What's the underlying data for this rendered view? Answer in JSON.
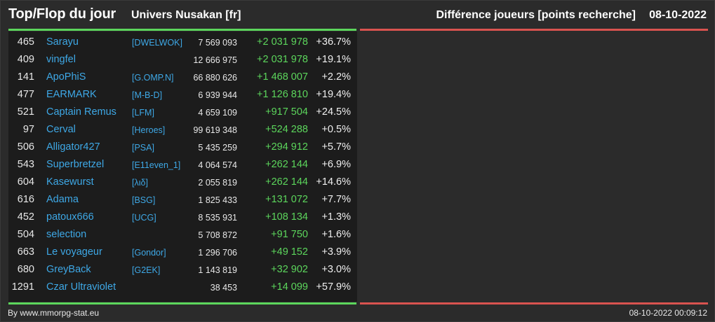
{
  "header": {
    "title": "Top/Flop du jour",
    "universe": "Univers Nusakan [fr]",
    "subtitle": "Différence joueurs [points recherche]",
    "date": "08-10-2022"
  },
  "colors": {
    "accent_green": "#5cd65c",
    "accent_red": "#d9534f",
    "link_blue": "#3ea8e6",
    "background": "#2b2b2b"
  },
  "rows": [
    {
      "rank": "465",
      "name": "Sarayu",
      "alliance": "[DWELWOK]",
      "points": "7 569 093",
      "diff": "+2 031 978",
      "pct": "+36.7%"
    },
    {
      "rank": "409",
      "name": "vingfel",
      "alliance": "",
      "points": "12 666 975",
      "diff": "+2 031 978",
      "pct": "+19.1%"
    },
    {
      "rank": "141",
      "name": "ApoPhiS",
      "alliance": "[G.OMP.N]",
      "points": "66 880 626",
      "diff": "+1 468 007",
      "pct": "+2.2%"
    },
    {
      "rank": "477",
      "name": "EARMARK",
      "alliance": "[M-B-D]",
      "points": "6 939 944",
      "diff": "+1 126 810",
      "pct": "+19.4%"
    },
    {
      "rank": "521",
      "name": "Captain Remus",
      "alliance": "[LFM]",
      "points": "4 659 109",
      "diff": "+917 504",
      "pct": "+24.5%"
    },
    {
      "rank": "97",
      "name": "Cerval",
      "alliance": "[Heroes]",
      "points": "99 619 348",
      "diff": "+524 288",
      "pct": "+0.5%"
    },
    {
      "rank": "506",
      "name": "Alligator427",
      "alliance": "[PSA]",
      "points": "5 435 259",
      "diff": "+294 912",
      "pct": "+5.7%"
    },
    {
      "rank": "543",
      "name": "Superbretzel",
      "alliance": "[E11even_1]",
      "points": "4 064 574",
      "diff": "+262 144",
      "pct": "+6.9%"
    },
    {
      "rank": "604",
      "name": "Kasewurst",
      "alliance": "[λιδ]",
      "points": "2 055 819",
      "diff": "+262 144",
      "pct": "+14.6%"
    },
    {
      "rank": "616",
      "name": "Adama",
      "alliance": "[BSG]",
      "points": "1 825 433",
      "diff": "+131 072",
      "pct": "+7.7%"
    },
    {
      "rank": "452",
      "name": "patoux666",
      "alliance": "[UCG]",
      "points": "8 535 931",
      "diff": "+108 134",
      "pct": "+1.3%"
    },
    {
      "rank": "504",
      "name": "selection",
      "alliance": "",
      "points": "5 708 872",
      "diff": "+91 750",
      "pct": "+1.6%"
    },
    {
      "rank": "663",
      "name": "Le voyageur",
      "alliance": "[Gondor]",
      "points": "1 296 706",
      "diff": "+49 152",
      "pct": "+3.9%"
    },
    {
      "rank": "680",
      "name": "GreyBack",
      "alliance": "[G2EK]",
      "points": "1 143 819",
      "diff": "+32 902",
      "pct": "+3.0%"
    },
    {
      "rank": "1291",
      "name": "Czar Ultraviolet",
      "alliance": "",
      "points": "38 453",
      "diff": "+14 099",
      "pct": "+57.9%"
    }
  ],
  "footer": {
    "source": "By www.mmorpg-stat.eu",
    "timestamp": "08-10-2022 00:09:12"
  }
}
